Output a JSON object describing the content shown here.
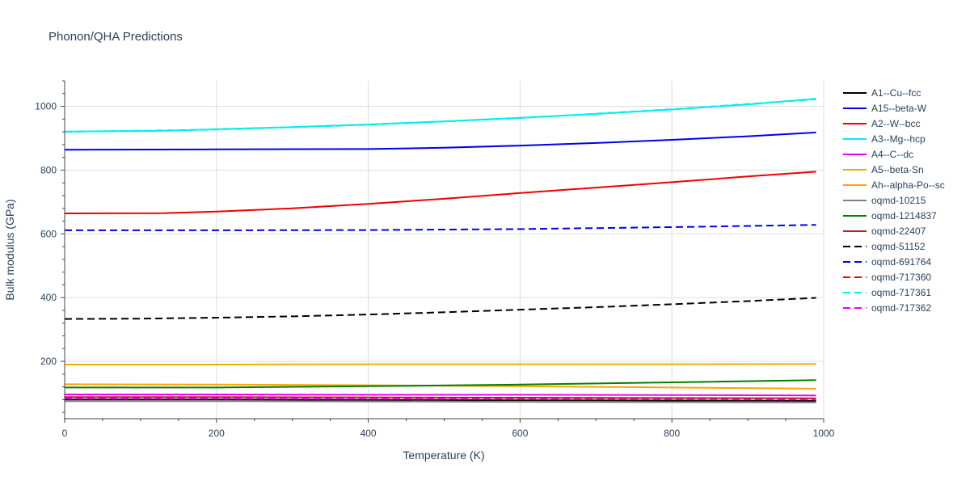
{
  "chart_data": {
    "type": "line",
    "title": "Phonon/QHA Predictions",
    "xlabel": "Temperature (K)",
    "ylabel": "Bulk modulus (GPa)",
    "xlim": [
      0,
      1000
    ],
    "ylim": [
      20,
      1080
    ],
    "xticks": [
      0,
      200,
      400,
      600,
      800,
      1000
    ],
    "yticks": [
      200,
      400,
      600,
      800,
      1000
    ],
    "grid": true,
    "legend_position": "right",
    "series": [
      {
        "name": "A1--Cu--fcc",
        "color": "#000000",
        "dash": "solid",
        "x": [
          0,
          200,
          400,
          600,
          800,
          990
        ],
        "y": [
          80,
          80,
          79,
          78,
          77,
          76
        ]
      },
      {
        "name": "A15--beta-W",
        "color": "#0000ee",
        "dash": "solid",
        "x": [
          0,
          200,
          400,
          500,
          600,
          700,
          800,
          900,
          990
        ],
        "y": [
          864,
          865,
          866,
          870,
          877,
          885,
          895,
          906,
          918
        ]
      },
      {
        "name": "A2--W--bcc",
        "color": "#ee0000",
        "dash": "solid",
        "x": [
          0,
          130,
          200,
          300,
          400,
          500,
          600,
          700,
          800,
          900,
          990
        ],
        "y": [
          664,
          665,
          670,
          680,
          694,
          710,
          728,
          745,
          762,
          780,
          795
        ]
      },
      {
        "name": "A3--Mg--hcp",
        "color": "#00eeee",
        "dash": "solid",
        "x": [
          0,
          130,
          200,
          300,
          400,
          500,
          600,
          700,
          800,
          900,
          990
        ],
        "y": [
          921,
          923,
          928,
          935,
          943,
          953,
          964,
          976,
          990,
          1006,
          1024
        ]
      },
      {
        "name": "A4--C--dc",
        "color": "#ee00ee",
        "dash": "solid",
        "x": [
          0,
          200,
          400,
          600,
          800,
          990
        ],
        "y": [
          96,
          96,
          95,
          95,
          94,
          93
        ]
      },
      {
        "name": "A5--beta-Sn",
        "color": "#eeb000",
        "dash": "solid",
        "x": [
          0,
          200,
          400,
          600,
          800,
          990
        ],
        "y": [
          190,
          190,
          191,
          191,
          191,
          192
        ]
      },
      {
        "name": "Ah--alpha-Po--sc",
        "color": "#ffa500",
        "dash": "solid",
        "x": [
          0,
          200,
          400,
          600,
          700,
          800,
          900,
          990
        ],
        "y": [
          128,
          127,
          125,
          122,
          120,
          118,
          116,
          114
        ]
      },
      {
        "name": "oqmd-10215",
        "color": "#808080",
        "dash": "solid",
        "x": [
          0,
          200,
          400,
          600,
          800,
          990
        ],
        "y": [
          75,
          75,
          74,
          73,
          72,
          71
        ]
      },
      {
        "name": "oqmd-1214837",
        "color": "#008000",
        "dash": "solid",
        "x": [
          0,
          200,
          400,
          600,
          800,
          990
        ],
        "y": [
          118,
          118,
          122,
          127,
          134,
          141
        ]
      },
      {
        "name": "oqmd-22407",
        "color": "#b22222",
        "dash": "solid",
        "x": [
          0,
          200,
          400,
          600,
          800,
          990
        ],
        "y": [
          88,
          88,
          87,
          86,
          85,
          84
        ]
      },
      {
        "name": "oqmd-51152",
        "color": "#000000",
        "dash": "dash",
        "x": [
          0,
          100,
          200,
          300,
          400,
          500,
          600,
          700,
          800,
          900,
          990
        ],
        "y": [
          333,
          334,
          337,
          341,
          347,
          354,
          362,
          370,
          379,
          389,
          399
        ]
      },
      {
        "name": "oqmd-691764",
        "color": "#0000ee",
        "dash": "dash",
        "x": [
          0,
          200,
          400,
          600,
          800,
          990
        ],
        "y": [
          611,
          611,
          612,
          615,
          621,
          628
        ]
      },
      {
        "name": "oqmd-717360",
        "color": "#ee0000",
        "dash": "dash",
        "x": [
          0,
          200,
          400,
          600,
          800,
          990
        ],
        "y": [
          86,
          86,
          85,
          84,
          83,
          82
        ]
      },
      {
        "name": "oqmd-717361",
        "color": "#00eeee",
        "dash": "dash",
        "x": [
          0,
          200,
          400,
          600,
          800,
          990
        ],
        "y": [
          920,
          927,
          942,
          963,
          991,
          1022
        ]
      },
      {
        "name": "oqmd-717362",
        "color": "#ee00ee",
        "dash": "dash",
        "x": [
          0,
          200,
          400,
          600,
          800,
          990
        ],
        "y": [
          84,
          84,
          83,
          82,
          81,
          80
        ]
      }
    ]
  }
}
